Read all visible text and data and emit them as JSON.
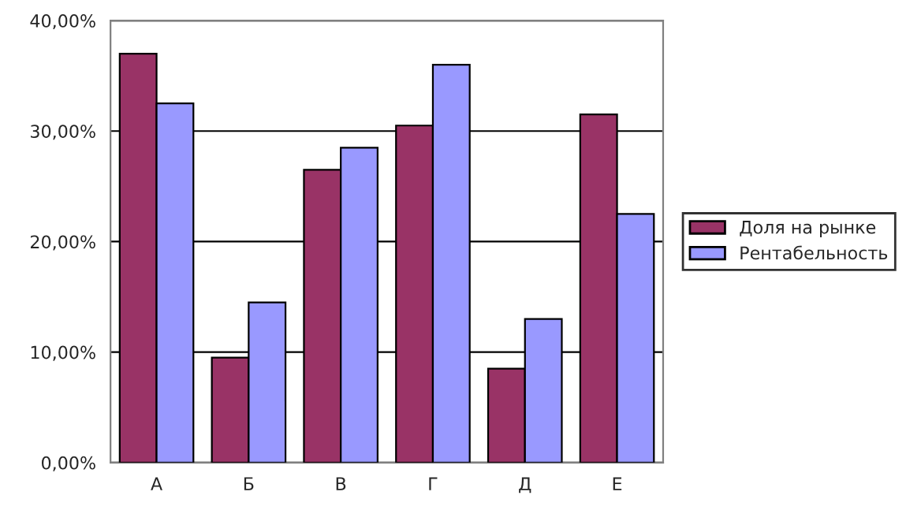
{
  "chart_data": {
    "type": "bar",
    "categories": [
      "А",
      "Б",
      "В",
      "Г",
      "Д",
      "Е"
    ],
    "series": [
      {
        "name": "Доля на рынке",
        "color": "#993366",
        "values": [
          37,
          9.5,
          26.5,
          30.5,
          8.5,
          31.5
        ]
      },
      {
        "name": "Рентабельность",
        "color": "#9999ff",
        "values": [
          32.5,
          14.5,
          28.5,
          36,
          13,
          22.5
        ]
      }
    ],
    "ylim": [
      0,
      40
    ],
    "yticks": [
      {
        "value": 0,
        "label": "0,00%"
      },
      {
        "value": 10,
        "label": "10,00%"
      },
      {
        "value": 20,
        "label": "20,00%"
      },
      {
        "value": 30,
        "label": "30,00%"
      },
      {
        "value": 40,
        "label": "40,00%"
      }
    ],
    "grid": "y",
    "legend": "right"
  }
}
